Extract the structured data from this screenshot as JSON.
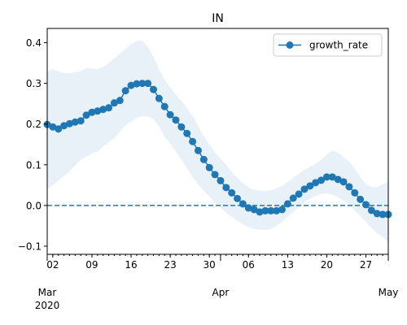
{
  "chart_data": {
    "type": "line",
    "title": "IN",
    "xlabel": "",
    "ylabel": "",
    "x_start_date": "2020-03-01",
    "x_end_date": "2020-05-01",
    "ylim": [
      -0.12,
      0.435
    ],
    "y_ticks": [
      -0.1,
      0.0,
      0.1,
      0.2,
      0.3,
      0.4
    ],
    "y_tick_labels": [
      "−0.1",
      "0.0",
      "0.1",
      "0.2",
      "0.3",
      "0.4"
    ],
    "x_minor_tick_dates": [
      "2020-03-02",
      "2020-03-09",
      "2020-03-16",
      "2020-03-23",
      "2020-03-30",
      "2020-04-06",
      "2020-04-13",
      "2020-04-20",
      "2020-04-27"
    ],
    "x_minor_tick_labels": [
      "02",
      "09",
      "16",
      "23",
      "30",
      "06",
      "13",
      "20",
      "27"
    ],
    "x_major_tick_dates": [
      "2020-03-01",
      "2020-04-01",
      "2020-05-01"
    ],
    "x_major_tick_labels": [
      "Mar\n2020",
      "Apr",
      "May"
    ],
    "grid": false,
    "legend": {
      "position": "top-right",
      "entries": [
        "growth_rate"
      ]
    },
    "reference_line": {
      "y": 0.0,
      "style": "dashed"
    },
    "colors": {
      "line": "#1f77b4",
      "band": "#dce9f5",
      "band_opacity": 0.65
    },
    "series": [
      {
        "name": "growth_rate",
        "x": [
          "2020-03-01",
          "2020-03-02",
          "2020-03-03",
          "2020-03-04",
          "2020-03-05",
          "2020-03-06",
          "2020-03-07",
          "2020-03-08",
          "2020-03-09",
          "2020-03-10",
          "2020-03-11",
          "2020-03-12",
          "2020-03-13",
          "2020-03-14",
          "2020-03-15",
          "2020-03-16",
          "2020-03-17",
          "2020-03-18",
          "2020-03-19",
          "2020-03-20",
          "2020-03-21",
          "2020-03-22",
          "2020-03-23",
          "2020-03-24",
          "2020-03-25",
          "2020-03-26",
          "2020-03-27",
          "2020-03-28",
          "2020-03-29",
          "2020-03-30",
          "2020-03-31",
          "2020-04-01",
          "2020-04-02",
          "2020-04-03",
          "2020-04-04",
          "2020-04-05",
          "2020-04-06",
          "2020-04-07",
          "2020-04-08",
          "2020-04-09",
          "2020-04-10",
          "2020-04-11",
          "2020-04-12",
          "2020-04-13",
          "2020-04-14",
          "2020-04-15",
          "2020-04-16",
          "2020-04-17",
          "2020-04-18",
          "2020-04-19",
          "2020-04-20",
          "2020-04-21",
          "2020-04-22",
          "2020-04-23",
          "2020-04-24",
          "2020-04-25",
          "2020-04-26",
          "2020-04-27",
          "2020-04-28",
          "2020-04-29",
          "2020-04-30",
          "2020-05-01"
        ],
        "values": [
          0.199,
          0.193,
          0.188,
          0.196,
          0.201,
          0.205,
          0.208,
          0.222,
          0.229,
          0.232,
          0.236,
          0.24,
          0.252,
          0.258,
          0.282,
          0.295,
          0.299,
          0.3,
          0.3,
          0.285,
          0.263,
          0.243,
          0.223,
          0.21,
          0.193,
          0.177,
          0.157,
          0.135,
          0.113,
          0.093,
          0.076,
          0.061,
          0.044,
          0.031,
          0.017,
          0.004,
          -0.006,
          -0.01,
          -0.016,
          -0.013,
          -0.013,
          -0.013,
          -0.01,
          0.004,
          0.018,
          0.028,
          0.04,
          0.048,
          0.056,
          0.062,
          0.07,
          0.07,
          0.064,
          0.058,
          0.046,
          0.031,
          0.015,
          0.002,
          -0.012,
          -0.02,
          -0.022,
          -0.022
        ],
        "lower": [
          0.04,
          0.05,
          0.06,
          0.073,
          0.083,
          0.098,
          0.112,
          0.12,
          0.128,
          0.132,
          0.145,
          0.155,
          0.165,
          0.18,
          0.198,
          0.205,
          0.215,
          0.22,
          0.218,
          0.212,
          0.195,
          0.168,
          0.152,
          0.132,
          0.112,
          0.092,
          0.07,
          0.052,
          0.036,
          0.022,
          0.008,
          -0.005,
          -0.018,
          -0.028,
          -0.038,
          -0.047,
          -0.053,
          -0.057,
          -0.06,
          -0.06,
          -0.058,
          -0.05,
          -0.04,
          -0.028,
          -0.015,
          -0.005,
          0.008,
          0.016,
          0.023,
          0.028,
          0.03,
          0.027,
          0.02,
          0.012,
          0.002,
          -0.012,
          -0.025,
          -0.04,
          -0.055,
          -0.068,
          -0.078,
          -0.09
        ],
        "upper": [
          0.33,
          0.335,
          0.33,
          0.325,
          0.325,
          0.328,
          0.33,
          0.338,
          0.337,
          0.335,
          0.34,
          0.35,
          0.362,
          0.373,
          0.385,
          0.397,
          0.405,
          0.405,
          0.39,
          0.365,
          0.335,
          0.308,
          0.29,
          0.272,
          0.257,
          0.24,
          0.22,
          0.195,
          0.17,
          0.15,
          0.13,
          0.115,
          0.1,
          0.082,
          0.068,
          0.055,
          0.045,
          0.038,
          0.036,
          0.036,
          0.038,
          0.042,
          0.048,
          0.058,
          0.068,
          0.078,
          0.088,
          0.095,
          0.102,
          0.112,
          0.125,
          0.135,
          0.13,
          0.118,
          0.108,
          0.09,
          0.07,
          0.053,
          0.045,
          0.045,
          0.052,
          0.06
        ]
      }
    ]
  }
}
